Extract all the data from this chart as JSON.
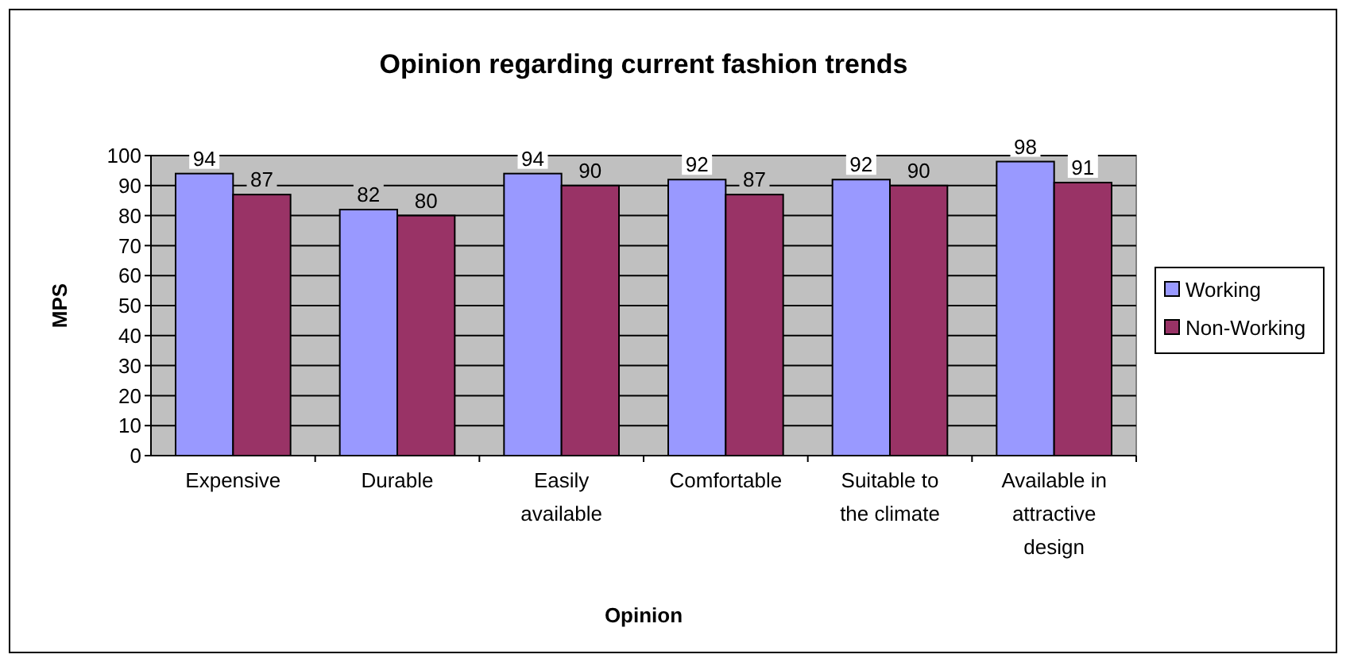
{
  "chart_data": {
    "type": "bar",
    "title": "Opinion regarding current fashion trends",
    "xlabel": "Opinion",
    "ylabel": "MPS",
    "categories": [
      "Expensive",
      "Durable",
      "Easily available",
      "Comfortable",
      "Suitable to the climate",
      "Available in attractive design"
    ],
    "series": [
      {
        "name": "Working",
        "color": "#9999ff",
        "values": [
          94,
          82,
          94,
          92,
          92,
          98
        ]
      },
      {
        "name": "Non-Working",
        "color": "#993366",
        "values": [
          87,
          80,
          90,
          87,
          90,
          91
        ]
      }
    ],
    "ylim": [
      0,
      100
    ],
    "yticks": [
      0,
      10,
      20,
      30,
      40,
      50,
      60,
      70,
      80,
      90,
      100
    ],
    "grid": "y",
    "legend": "right",
    "data_labels": true
  }
}
